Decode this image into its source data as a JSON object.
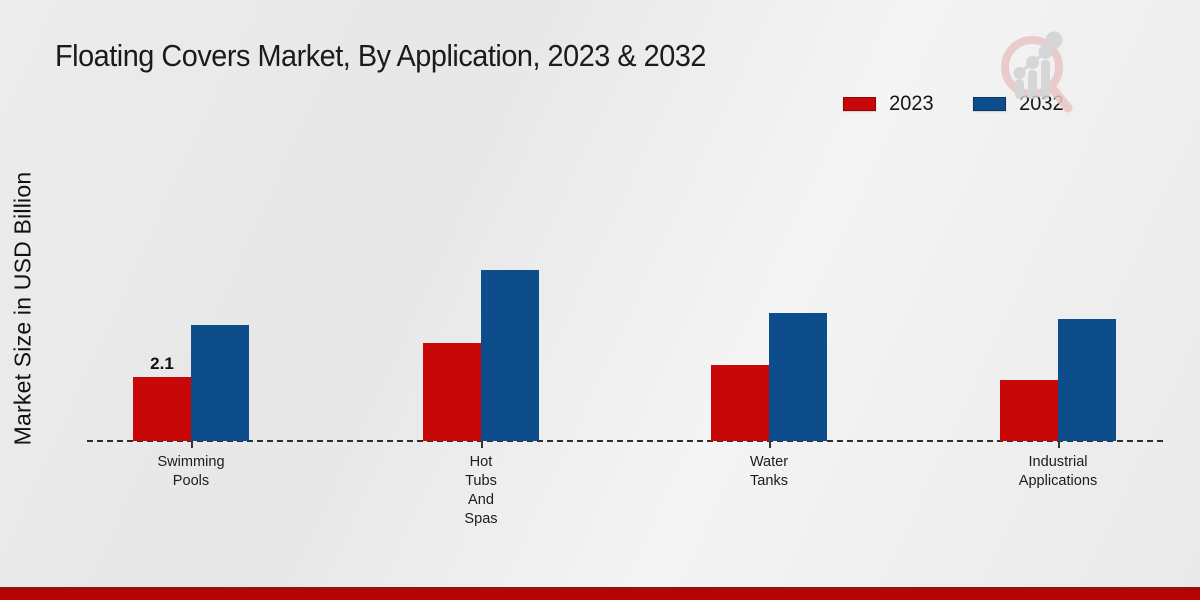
{
  "title": "Floating Covers Market, By Application, 2023 & 2032",
  "ylabel": "Market Size in USD Billion",
  "legend": [
    {
      "label": "2023",
      "color": "#c80808"
    },
    {
      "label": "2032",
      "color": "#0e4d8c"
    }
  ],
  "chart_data": {
    "type": "bar",
    "title": "Floating Covers Market, By Application, 2023 & 2032",
    "xlabel": "",
    "ylabel": "Market Size in USD Billion",
    "unit": "USD Billion",
    "categories": [
      "Swimming Pools",
      "Hot Tubs And Spas",
      "Water Tanks",
      "Industrial Applications"
    ],
    "category_label_lines": [
      [
        "Swimming",
        "Pools"
      ],
      [
        "Hot",
        "Tubs",
        "And",
        "Spas"
      ],
      [
        "Water",
        "Tanks"
      ],
      [
        "Industrial",
        "Applications"
      ]
    ],
    "series": [
      {
        "name": "2023",
        "color": "#c80808",
        "values": [
          2.1,
          3.2,
          2.5,
          2.0
        ]
      },
      {
        "name": "2032",
        "color": "#0e4d8c",
        "values": [
          3.8,
          5.6,
          4.2,
          4.0
        ]
      }
    ],
    "annotations": [
      {
        "series": "2023",
        "category_index": 0,
        "text": "2.1"
      }
    ],
    "ylim": [
      0,
      6
    ],
    "gridlines": false,
    "baseline_style": "dashed",
    "legend_position": "top-right"
  },
  "branding": {
    "logo_icon": "magnifier-growth-chart-logo",
    "footer_bar_color": "#b50404"
  }
}
